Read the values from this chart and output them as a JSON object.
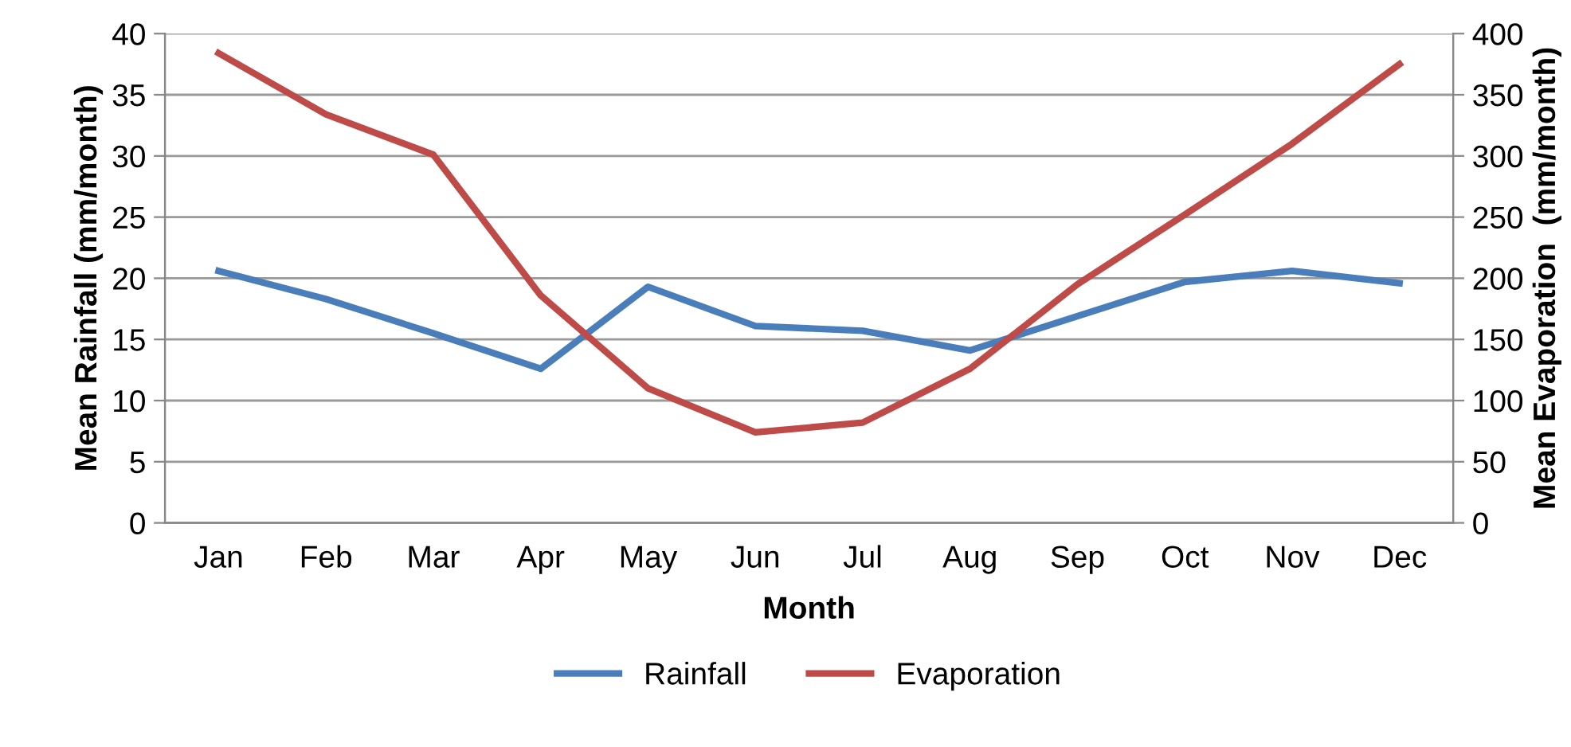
{
  "chart_data": {
    "type": "line",
    "xlabel": "Month",
    "ylabel": "Mean Rainfall (mm/month)",
    "y2label": "Mean Evaporation  (mm/month)",
    "categories": [
      "Jan",
      "Feb",
      "Mar",
      "Apr",
      "May",
      "Jun",
      "Jul",
      "Aug",
      "Sep",
      "Oct",
      "Nov",
      "Dec"
    ],
    "series": [
      {
        "name": "Rainfall",
        "color": "#4a7ebb",
        "values": [
          20.6,
          18.3,
          15.5,
          12.6,
          19.3,
          16.1,
          15.7,
          14.1,
          16.9,
          19.7,
          20.6,
          19.6
        ]
      },
      {
        "name": "Evaporation",
        "color": "#be4b48",
        "axis": "y2",
        "values": [
          384,
          334,
          301,
          186,
          110,
          74,
          82,
          126,
          195,
          252,
          310,
          375
        ]
      }
    ],
    "ylim": [
      0,
      40
    ],
    "yticks": [
      0,
      5,
      10,
      15,
      20,
      25,
      30,
      35,
      40
    ],
    "y2lim": [
      0,
      400
    ],
    "y2ticks": [
      0,
      50,
      100,
      150,
      200,
      250,
      300,
      350,
      400
    ],
    "grid": "y",
    "legend": "bottom",
    "marker": "none",
    "line_style": "solid"
  }
}
